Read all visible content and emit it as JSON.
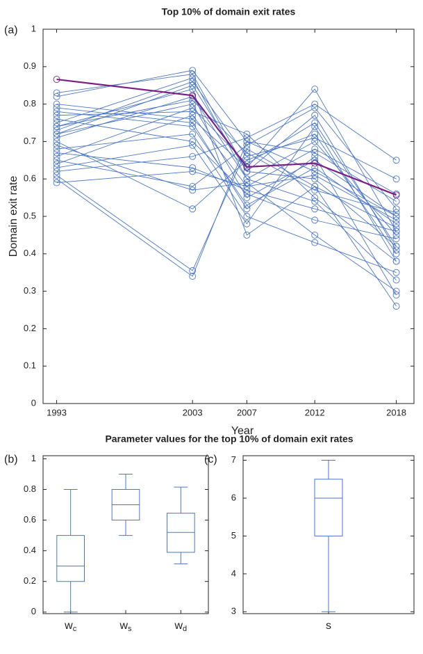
{
  "chart_data": [
    {
      "type": "line",
      "title": "Top 10% of domain exit rates",
      "panel_label": "(a)",
      "xlabel": "Year",
      "ylabel": "Domain exit rate",
      "x": [
        1993,
        2003,
        2007,
        2012,
        2018
      ],
      "xlim": [
        1992,
        2019.3
      ],
      "xticks": [
        1993,
        2003,
        2007,
        2012,
        2018
      ],
      "ylim": [
        0,
        1
      ],
      "yticks": [
        0,
        0.1,
        0.2,
        0.3,
        0.4,
        0.5,
        0.6,
        0.7,
        0.8,
        0.9,
        1
      ],
      "series": [
        {
          "color": "#4a76c9",
          "values": [
            0.75,
            0.87,
            0.6,
            0.7,
            0.45
          ]
        },
        {
          "color": "#4a76c9",
          "values": [
            0.72,
            0.8,
            0.55,
            0.65,
            0.5
          ]
        },
        {
          "color": "#4a76c9",
          "values": [
            0.83,
            0.88,
            0.62,
            0.6,
            0.42
          ]
        },
        {
          "color": "#4a76c9",
          "values": [
            0.6,
            0.34,
            0.7,
            0.62,
            0.5
          ]
        },
        {
          "color": "#4a76c9",
          "values": [
            0.61,
            0.355,
            0.68,
            0.58,
            0.47
          ]
        },
        {
          "color": "#4a76c9",
          "values": [
            0.77,
            0.78,
            0.72,
            0.55,
            0.38
          ]
        },
        {
          "color": "#4a76c9",
          "values": [
            0.7,
            0.52,
            0.65,
            0.72,
            0.4
          ]
        },
        {
          "color": "#4a76c9",
          "values": [
            0.65,
            0.58,
            0.69,
            0.79,
            0.52
          ]
        },
        {
          "color": "#4a76c9",
          "values": [
            0.74,
            0.84,
            0.45,
            0.58,
            0.26
          ]
        },
        {
          "color": "#4a76c9",
          "values": [
            0.8,
            0.76,
            0.63,
            0.84,
            0.46
          ]
        },
        {
          "color": "#4a76c9",
          "values": [
            0.68,
            0.72,
            0.5,
            0.43,
            0.35
          ]
        },
        {
          "color": "#4a76c9",
          "values": [
            0.59,
            0.62,
            0.58,
            0.68,
            0.56
          ]
        },
        {
          "color": "#4a76c9",
          "values": [
            0.73,
            0.86,
            0.66,
            0.71,
            0.6
          ]
        },
        {
          "color": "#4a76c9",
          "values": [
            0.76,
            0.7,
            0.56,
            0.49,
            0.44
          ]
        },
        {
          "color": "#4a76c9",
          "values": [
            0.62,
            0.66,
            0.71,
            0.8,
            0.65
          ]
        },
        {
          "color": "#4a76c9",
          "values": [
            0.71,
            0.82,
            0.6,
            0.54,
            0.33
          ]
        },
        {
          "color": "#4a76c9",
          "values": [
            0.78,
            0.74,
            0.53,
            0.63,
            0.48
          ]
        },
        {
          "color": "#4a76c9",
          "values": [
            0.66,
            0.79,
            0.64,
            0.75,
            0.42
          ]
        },
        {
          "color": "#4a76c9",
          "values": [
            0.69,
            0.57,
            0.59,
            0.45,
            0.3
          ]
        },
        {
          "color": "#4a76c9",
          "values": [
            0.82,
            0.89,
            0.7,
            0.67,
            0.54
          ]
        },
        {
          "color": "#4a76c9",
          "values": [
            0.63,
            0.69,
            0.48,
            0.74,
            0.38
          ]
        },
        {
          "color": "#4a76c9",
          "values": [
            0.74,
            0.81,
            0.67,
            0.57,
            0.51
          ]
        },
        {
          "color": "#4a76c9",
          "values": [
            0.79,
            0.75,
            0.52,
            0.66,
            0.29
          ]
        },
        {
          "color": "#4a76c9",
          "values": [
            0.67,
            0.63,
            0.57,
            0.52,
            0.46
          ]
        },
        {
          "color": "#4a76c9",
          "values": [
            0.72,
            0.85,
            0.62,
            0.77,
            0.41
          ]
        },
        {
          "color": "#4a76c9",
          "values": [
            0.64,
            0.77,
            0.58,
            0.61,
            0.49
          ]
        },
        {
          "color": "#7b1f82",
          "values": [
            0.866,
            0.823,
            0.632,
            0.642,
            0.557
          ]
        }
      ]
    },
    {
      "type": "box",
      "title": "Parameter values for the top 10% of domain exit rates",
      "panel_label": "(b)",
      "color": "#4a76c9",
      "categories": [
        {
          "base": "w",
          "sub": "c"
        },
        {
          "base": "w",
          "sub": "s"
        },
        {
          "base": "w",
          "sub": "d"
        }
      ],
      "ylim": [
        -0.01,
        1.02
      ],
      "yticks": [
        0,
        0.2,
        0.4,
        0.6,
        0.8,
        1
      ],
      "boxes": [
        {
          "min": 0,
          "q1": 0.2,
          "median": 0.3,
          "q3": 0.5,
          "max": 0.8
        },
        {
          "min": 0.5,
          "q1": 0.6,
          "median": 0.7,
          "q3": 0.8,
          "max": 0.9
        },
        {
          "min": 0.315,
          "q1": 0.39,
          "median": 0.52,
          "q3": 0.645,
          "max": 0.815
        }
      ]
    },
    {
      "type": "box",
      "panel_label": "(c)",
      "color": "#4a76c9",
      "categories": [
        {
          "base": "s"
        }
      ],
      "ylim": [
        2.95,
        7.12
      ],
      "yticks": [
        3,
        4,
        5,
        6,
        7
      ],
      "boxes": [
        {
          "min": 3,
          "q1": 5,
          "median": 6,
          "q3": 6.5,
          "max": 7
        }
      ]
    }
  ]
}
